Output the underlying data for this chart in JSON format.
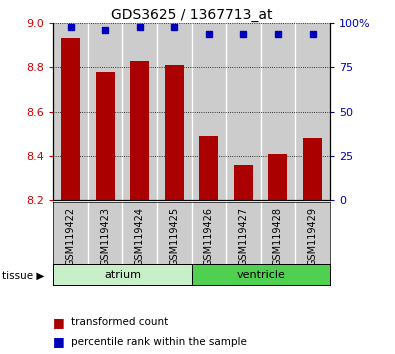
{
  "title": "GDS3625 / 1367713_at",
  "samples": [
    "GSM119422",
    "GSM119423",
    "GSM119424",
    "GSM119425",
    "GSM119426",
    "GSM119427",
    "GSM119428",
    "GSM119429"
  ],
  "transformed_counts": [
    8.93,
    8.78,
    8.83,
    8.81,
    8.49,
    8.36,
    8.41,
    8.48
  ],
  "percentile_ranks": [
    98,
    96,
    98,
    98,
    94,
    94,
    94,
    94
  ],
  "baseline": 8.2,
  "ylim_left": [
    8.2,
    9.0
  ],
  "ylim_right": [
    0,
    100
  ],
  "yticks_left": [
    8.2,
    8.4,
    8.6,
    8.8,
    9.0
  ],
  "yticks_right": [
    0,
    25,
    50,
    75,
    100
  ],
  "ytick_labels_right": [
    "0",
    "25",
    "50",
    "75",
    "100%"
  ],
  "tissue_groups": [
    {
      "label": "atrium",
      "start": 0,
      "end": 4,
      "color": "#c8f0c8"
    },
    {
      "label": "ventricle",
      "start": 4,
      "end": 8,
      "color": "#50d050"
    }
  ],
  "bar_color": "#aa0000",
  "dot_color": "#0000bb",
  "bar_width": 0.55,
  "tick_color_left": "#cc0000",
  "tick_color_right": "#0000bb",
  "sample_bg": "#cccccc",
  "legend_items": [
    {
      "label": "transformed count",
      "color": "#aa0000"
    },
    {
      "label": "percentile rank within the sample",
      "color": "#0000bb"
    }
  ]
}
